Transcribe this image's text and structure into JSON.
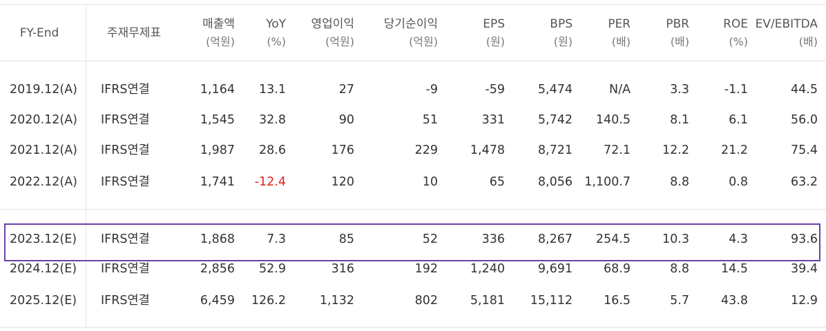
{
  "header": {
    "fy_end": "FY-End",
    "basis": "주재무제표",
    "columns": [
      {
        "label": "매출액",
        "unit": "(억원)"
      },
      {
        "label": "YoY",
        "unit": "(%)"
      },
      {
        "label": "영업이익",
        "unit": "(억원)"
      },
      {
        "label": "당기순이익",
        "unit": "(억원)"
      },
      {
        "label": "EPS",
        "unit": "(원)"
      },
      {
        "label": "BPS",
        "unit": "(원)"
      },
      {
        "label": "PER",
        "unit": "(배)"
      },
      {
        "label": "PBR",
        "unit": "(배)"
      },
      {
        "label": "ROE",
        "unit": "(%)"
      },
      {
        "label": "EV/EBITDA",
        "unit": "(배)"
      }
    ]
  },
  "rows": [
    {
      "fy": "2019.12(A)",
      "basis": "IFRS연결",
      "values": [
        "1,164",
        "13.1",
        "27",
        "-9",
        "-59",
        "5,474",
        "N/A",
        "3.3",
        "-1.1",
        "44.5"
      ]
    },
    {
      "fy": "2020.12(A)",
      "basis": "IFRS연결",
      "values": [
        "1,545",
        "32.8",
        "90",
        "51",
        "331",
        "5,742",
        "140.5",
        "8.1",
        "6.1",
        "56.0"
      ]
    },
    {
      "fy": "2021.12(A)",
      "basis": "IFRS연결",
      "values": [
        "1,987",
        "28.6",
        "176",
        "229",
        "1,478",
        "8,721",
        "72.1",
        "12.2",
        "21.2",
        "75.4"
      ]
    },
    {
      "fy": "2022.12(A)",
      "basis": "IFRS연결",
      "values": [
        "1,741",
        "-12.4",
        "120",
        "10",
        "65",
        "8,056",
        "1,100.7",
        "8.8",
        "0.8",
        "63.2"
      ]
    },
    {
      "fy": "2023.12(E)",
      "basis": "IFRS연결",
      "values": [
        "1,868",
        "7.3",
        "85",
        "52",
        "336",
        "8,267",
        "254.5",
        "10.3",
        "4.3",
        "93.6"
      ]
    },
    {
      "fy": "2024.12(E)",
      "basis": "IFRS연결",
      "values": [
        "2,856",
        "52.9",
        "316",
        "192",
        "1,240",
        "9,691",
        "68.9",
        "8.8",
        "14.5",
        "39.4"
      ]
    },
    {
      "fy": "2025.12(E)",
      "basis": "IFRS연결",
      "values": [
        "6,459",
        "126.2",
        "1,132",
        "802",
        "5,181",
        "15,112",
        "16.5",
        "5.7",
        "43.8",
        "12.9"
      ]
    }
  ],
  "colors": {
    "negative": "#e0201b",
    "highlight_border": "#6a3fa8"
  }
}
